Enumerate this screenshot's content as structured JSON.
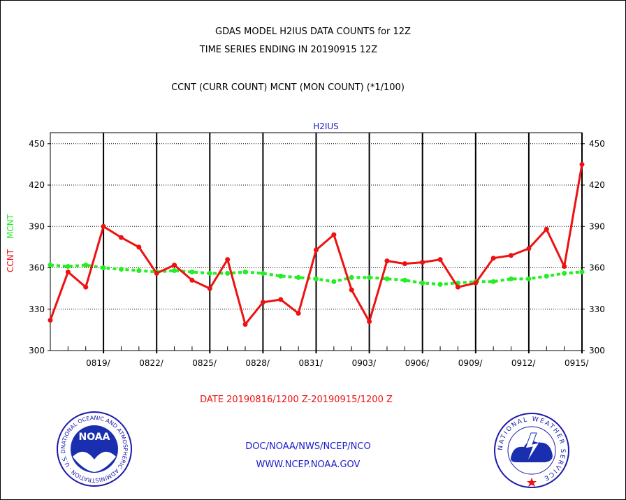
{
  "header": {
    "title_line1": "GDAS MODEL H2IUS DATA COUNTS for 12Z",
    "title_line2": "TIME SERIES ENDING IN 20190915 12Z",
    "subtitle": "CCNT (CURR COUNT) MCNT (MON COUNT) (*1/100)"
  },
  "footer": {
    "date_range": "DATE 20190816/1200 Z-20190915/1200 Z",
    "org_line": "DOC/NOAA/NWS/NCEP/NCO",
    "url_line": "WWW.NCEP.NOAA.GOV"
  },
  "logos": {
    "noaa_text": "NOAA",
    "noaa_ring": "NATIONAL OCEANIC AND ATMOSPHERIC ADMINISTRATION · U.S. DEPARTMENT OF COMMERCE ·",
    "nws_ring": "NATIONAL WEATHER SERVICE"
  },
  "colors": {
    "ccnt": "#ee1111",
    "mcnt": "#22ee22",
    "panel_title": "#1a1acc",
    "footer_blue": "#1a1acc",
    "footer_red": "#ee1111"
  },
  "chart_data": {
    "type": "line",
    "panel_title": "H2IUS",
    "ylabel_ccnt": "CCNT",
    "ylabel_mcnt": "MCNT",
    "ylim": [
      300,
      458
    ],
    "yticks": [
      300,
      330,
      360,
      390,
      420,
      450
    ],
    "ytick_labels": [
      "300",
      "330",
      "360",
      "390",
      "420",
      "450"
    ],
    "x_start": "2019-08-16",
    "x_end": "2019-09-15",
    "xtick_labels": [
      "0819/",
      "0822/",
      "0825/",
      "0828/",
      "0831/",
      "0903/",
      "0906/",
      "0909/",
      "0912/",
      "0915/"
    ],
    "xtick_dates": [
      "2019-08-19",
      "2019-08-22",
      "2019-08-25",
      "2019-08-28",
      "2019-08-31",
      "2019-09-03",
      "2019-09-06",
      "2019-09-09",
      "2019-09-12",
      "2019-09-15"
    ],
    "grid": true,
    "dates": [
      "2019-08-16",
      "2019-08-17",
      "2019-08-18",
      "2019-08-19",
      "2019-08-20",
      "2019-08-21",
      "2019-08-22",
      "2019-08-23",
      "2019-08-24",
      "2019-08-25",
      "2019-08-26",
      "2019-08-27",
      "2019-08-28",
      "2019-08-29",
      "2019-08-30",
      "2019-08-31",
      "2019-09-01",
      "2019-09-02",
      "2019-09-03",
      "2019-09-04",
      "2019-09-05",
      "2019-09-06",
      "2019-09-07",
      "2019-09-08",
      "2019-09-09",
      "2019-09-10",
      "2019-09-11",
      "2019-09-12",
      "2019-09-13",
      "2019-09-14",
      "2019-09-15"
    ],
    "series": [
      {
        "name": "CCNT",
        "values": [
          322,
          357,
          346,
          390,
          382,
          375,
          356,
          362,
          351,
          345,
          366,
          319,
          335,
          337,
          327,
          373,
          384,
          344,
          321,
          365,
          363,
          364,
          366,
          346,
          349,
          367,
          369,
          374,
          388,
          361,
          435
        ]
      },
      {
        "name": "MCNT",
        "values": [
          362,
          361,
          362,
          360,
          359,
          358,
          357,
          358,
          357,
          356,
          356,
          357,
          356,
          354,
          353,
          352,
          350,
          353,
          353,
          352,
          351,
          349,
          348,
          349,
          350,
          350,
          352,
          352,
          354,
          356,
          357
        ]
      }
    ]
  }
}
